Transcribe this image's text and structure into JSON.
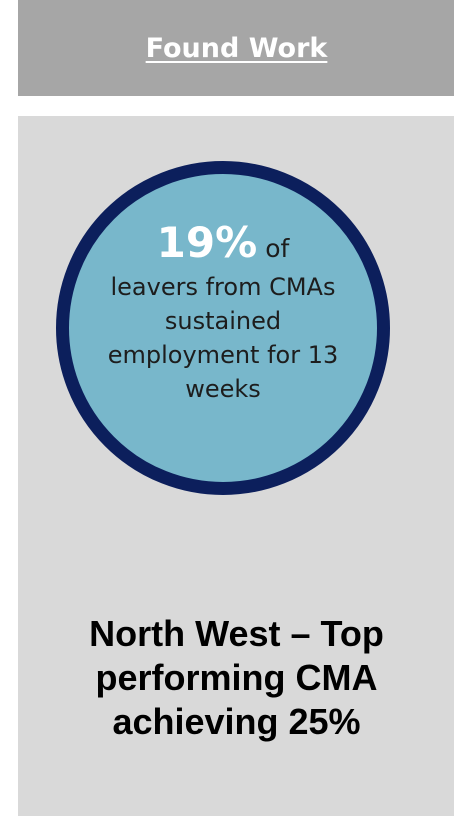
{
  "header": {
    "title": "Found Work"
  },
  "stat": {
    "percentage": "19%",
    "of_text": "of",
    "description": "leavers from CMAs sustained employment for 13 weeks"
  },
  "highlight": {
    "line1": "North West – Top",
    "line2": "performing CMA",
    "line3": "achieving 25%"
  },
  "colors": {
    "header_bg": "#a6a6a6",
    "panel_bg": "#d9d9d9",
    "circle_fill": "#78b7cb",
    "circle_border": "#0c1f5c"
  }
}
